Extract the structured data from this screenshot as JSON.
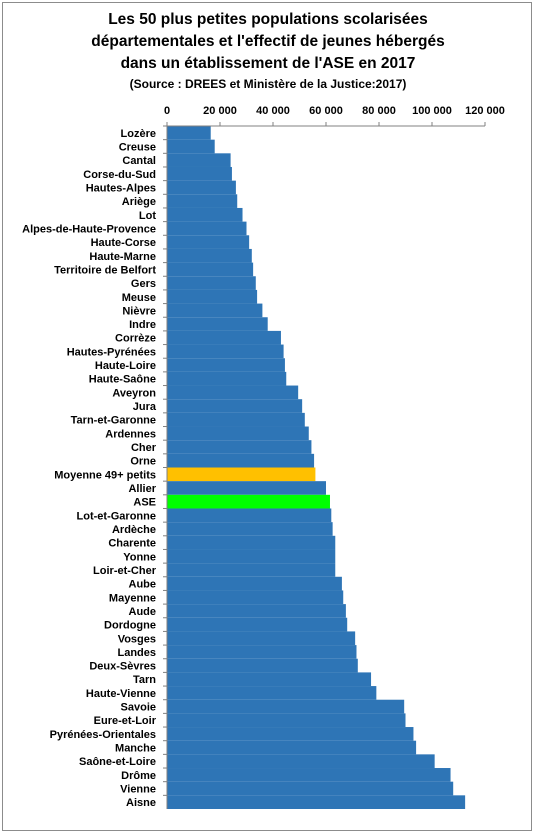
{
  "chart_data": {
    "type": "bar",
    "orientation": "horizontal",
    "title": "Les 50 plus petites populations scolarisées départementales et l'effectif de jeunes hébergés dans un établissement de l'ASE en 2017",
    "title_lines": [
      "Les 50 plus petites populations scolarisées",
      "départementales et  l'effectif de jeunes hébergés",
      "dans un établissement de l'ASE  en 2017"
    ],
    "subtitle": "(Source : DREES et Ministère de la Justice:2017)",
    "x_ticks": [
      "0",
      "20 000",
      "40 000",
      "60 000",
      "80 000",
      "100 000",
      "120 000"
    ],
    "xlim": [
      0,
      120000
    ],
    "xaxis_position": "top",
    "grid": false,
    "legend": "none",
    "colors": {
      "default": "#2E75B6",
      "Moyenne 49+ petits": "#FFC000",
      "ASE": "#00FF00"
    },
    "categories": [
      "Lozère",
      "Creuse",
      "Cantal",
      "Corse-du-Sud",
      "Hautes-Alpes",
      "Ariège",
      "Lot",
      "Alpes-de-Haute-Provence",
      "Haute-Corse",
      "Haute-Marne",
      "Territoire de Belfort",
      "Gers",
      "Meuse",
      "Nièvre",
      "Indre",
      "Corrèze",
      "Hautes-Pyrénées",
      "Haute-Loire",
      "Haute-Saône",
      "Aveyron",
      "Jura",
      "Tarn-et-Garonne",
      "Ardennes",
      "Cher",
      "Orne",
      "Moyenne 49+ petits",
      "Allier",
      "ASE",
      "Lot-et-Garonne",
      "Ardèche",
      "Charente",
      "Yonne",
      "Loir-et-Cher",
      "Aube",
      "Mayenne",
      "Aude",
      "Dordogne",
      "Vosges",
      "Landes",
      "Deux-Sèvres",
      "Tarn",
      "Haute-Vienne",
      "Savoie",
      "Eure-et-Loir",
      "Pyrénées-Orientales",
      "Manche",
      "Saône-et-Loire",
      "Drôme",
      "Vienne",
      "Aisne"
    ],
    "values": [
      16500,
      18000,
      24000,
      24500,
      26000,
      26500,
      28500,
      30000,
      31000,
      32000,
      32500,
      33500,
      34000,
      36000,
      38000,
      43000,
      44000,
      44500,
      45000,
      49500,
      51000,
      52000,
      53500,
      54500,
      55500,
      56000,
      60000,
      61500,
      62000,
      62500,
      63500,
      63500,
      63500,
      66000,
      66500,
      67500,
      68000,
      71000,
      71500,
      72000,
      77000,
      79000,
      89500,
      90000,
      93000,
      94000,
      101000,
      107000,
      108000,
      112500
    ]
  }
}
